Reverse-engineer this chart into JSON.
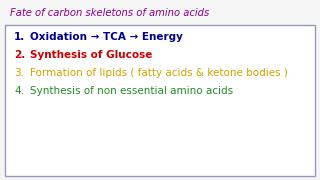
{
  "title": "Fate of carbon skeletons of amino acids",
  "title_color": "#8B008B",
  "background_color": "#f5f5f5",
  "border_color": "#9999bb",
  "items": [
    {
      "number": "1.",
      "text": "Oxidation → TCA → Energy",
      "color": "#00008B",
      "bold": true
    },
    {
      "number": "2.",
      "text": "Synthesis of Glucose",
      "color": "#cc0000",
      "bold": true
    },
    {
      "number": "3.",
      "text": "Formation of lipids ( fatty acids & ketone bodies )",
      "color": "#d4a000",
      "bold": false
    },
    {
      "number": "4.",
      "text": "Synthesis of non essential amino acids",
      "color": "#228B22",
      "bold": false
    }
  ],
  "figsize": [
    3.2,
    1.8
  ],
  "dpi": 100
}
